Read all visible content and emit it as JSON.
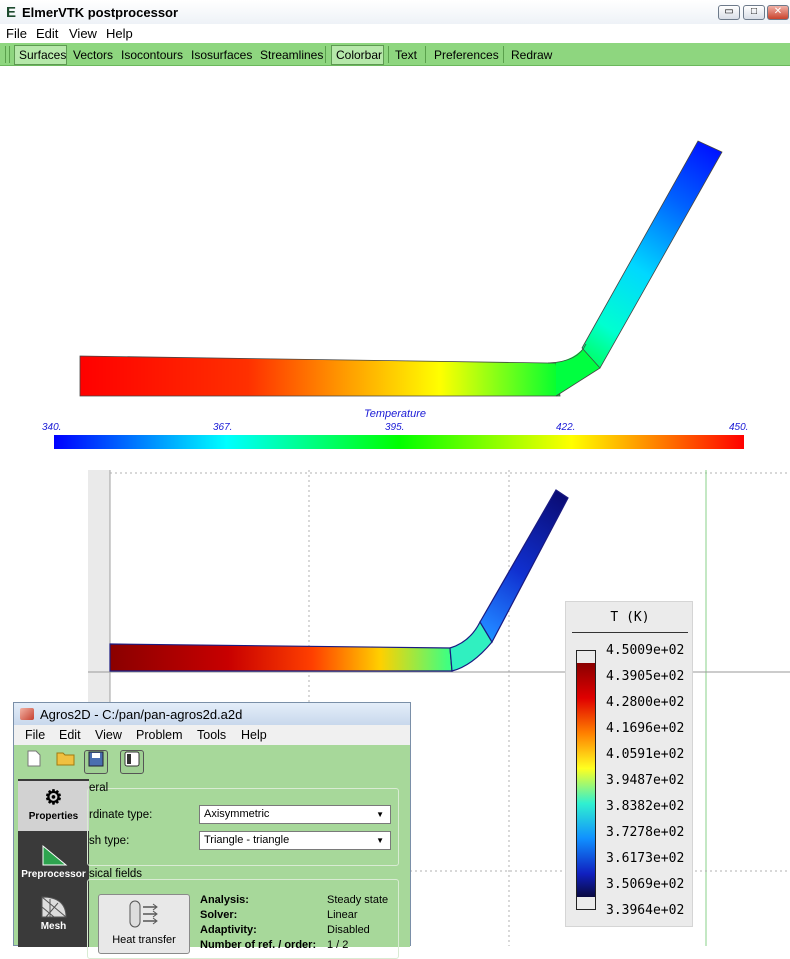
{
  "elmer": {
    "title": "ElmerVTK postprocessor",
    "logo_letter": "E",
    "menu": [
      "File",
      "Edit",
      "View",
      "Help"
    ],
    "toolbar": [
      "Surfaces",
      "Vectors",
      "Isocontours",
      "Isosurfaces",
      "Streamlines",
      "Colorbar",
      "Text",
      "Preferences",
      "Redraw"
    ],
    "colorbar": {
      "title": "Temperature",
      "ticks": [
        "340.",
        "367.",
        "395.",
        "422.",
        "450."
      ]
    }
  },
  "agros_plot": {
    "legend_title": "T (K)",
    "legend_values": [
      "4.5009e+02",
      "4.3905e+02",
      "4.2800e+02",
      "4.1696e+02",
      "4.0591e+02",
      "3.9487e+02",
      "3.8382e+02",
      "3.7278e+02",
      "3.6173e+02",
      "3.5069e+02",
      "3.3964e+02"
    ]
  },
  "agros": {
    "title": "Agros2D - C:/pan/pan-agros2d.a2d",
    "menu": [
      "File",
      "Edit",
      "View",
      "Problem",
      "Tools",
      "Help"
    ],
    "sidebar": [
      "Properties",
      "Preprocessor",
      "Mesh"
    ],
    "general_group": "eral",
    "coordinate_label": "rdinate type:",
    "coordinate_value": "Axisymmetric",
    "mesh_label": "sh type:",
    "mesh_value": "Triangle - triangle",
    "physical_group": "sical fields",
    "physics_button": "Heat transfer",
    "info": [
      {
        "label": "Analysis:",
        "value": "Steady state"
      },
      {
        "label": "Solver:",
        "value": "Linear"
      },
      {
        "label": "Adaptivity:",
        "value": "Disabled"
      },
      {
        "label": "Number of ref. / order:",
        "value": "1 / 2"
      }
    ]
  }
}
